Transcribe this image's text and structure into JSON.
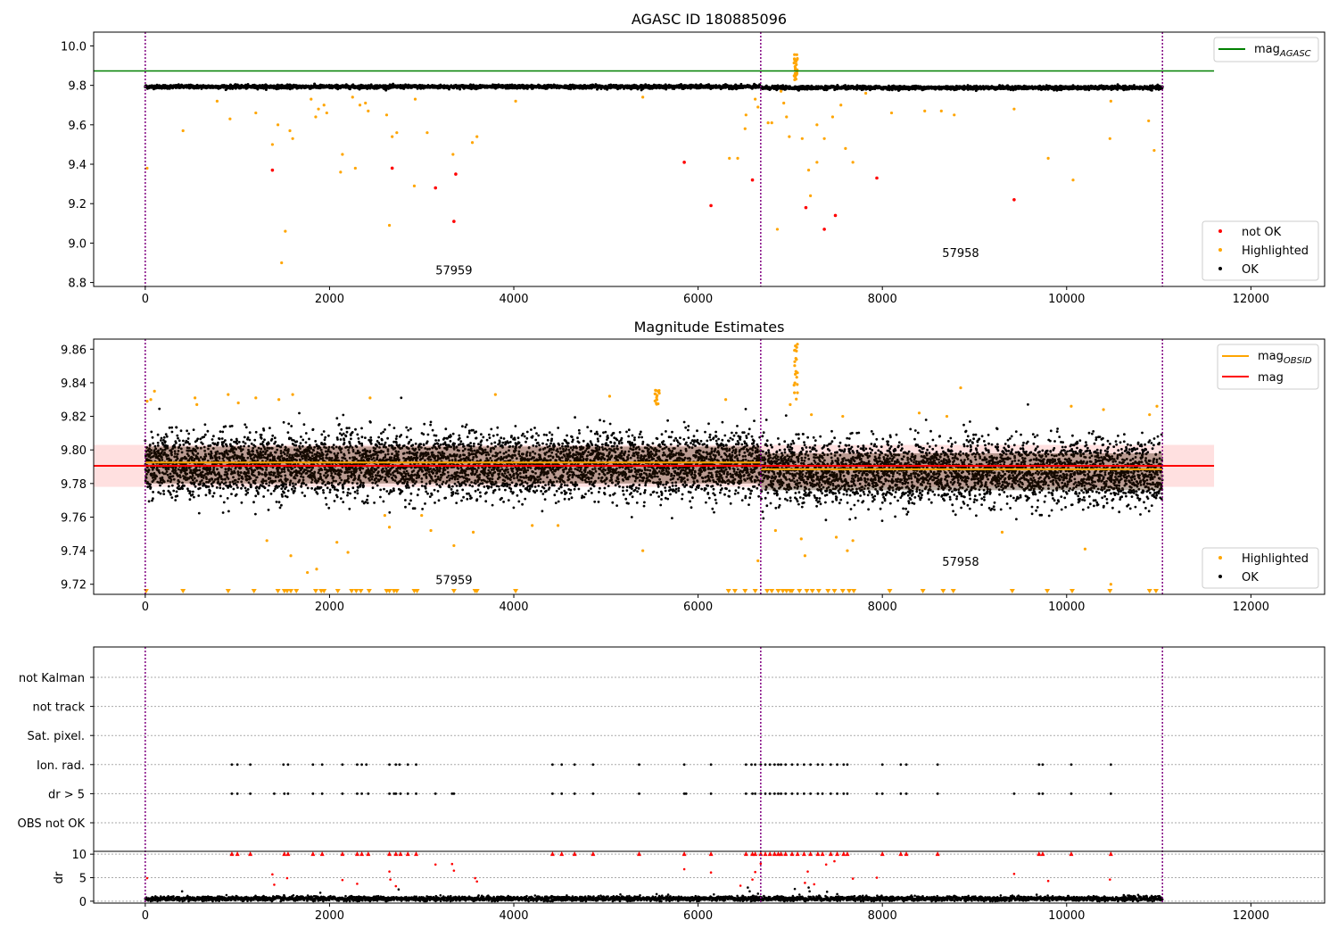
{
  "chart_data": [
    {
      "type": "scatter",
      "title": "AGASC ID 180885096",
      "xlim": [
        -560,
        12800
      ],
      "ylim": [
        8.78,
        10.07
      ],
      "xticks": [
        0,
        2000,
        4000,
        6000,
        8000,
        10000,
        12000
      ],
      "yticks": [
        8.8,
        9.0,
        9.2,
        9.4,
        9.6,
        9.8,
        10.0
      ],
      "ytick_labels": [
        "8.8",
        "9.0",
        "9.2",
        "9.4",
        "9.6",
        "9.8",
        "10.0"
      ],
      "obs_boundaries": [
        0,
        6680,
        11040
      ],
      "obs_labels": [
        {
          "text": "57959",
          "x": 3350,
          "y": 8.84
        },
        {
          "text": "57958",
          "x": 8850,
          "y": 8.93
        }
      ],
      "mag_agasc": {
        "value": 9.873,
        "x": [
          -560,
          11600
        ]
      },
      "series_model": {
        "x_range": [
          0,
          11040
        ],
        "segments": [
          {
            "x": [
              0,
              6680
            ],
            "center": 9.793,
            "spread": 0.011
          },
          {
            "x": [
              6680,
              11040
            ],
            "center": 9.788,
            "spread": 0.011
          }
        ]
      },
      "highlighted": [
        [
          20,
          9.38
        ],
        [
          410,
          9.57
        ],
        [
          780,
          9.72
        ],
        [
          920,
          9.63
        ],
        [
          1200,
          9.66
        ],
        [
          1380,
          9.5
        ],
        [
          1440,
          9.6
        ],
        [
          1480,
          8.9
        ],
        [
          1520,
          9.06
        ],
        [
          1570,
          9.57
        ],
        [
          1600,
          9.53
        ],
        [
          1800,
          9.73
        ],
        [
          1850,
          9.64
        ],
        [
          1880,
          9.68
        ],
        [
          1940,
          9.7
        ],
        [
          1970,
          9.66
        ],
        [
          2120,
          9.36
        ],
        [
          2140,
          9.45
        ],
        [
          2250,
          9.74
        ],
        [
          2280,
          9.38
        ],
        [
          2330,
          9.7
        ],
        [
          2390,
          9.71
        ],
        [
          2420,
          9.67
        ],
        [
          2620,
          9.65
        ],
        [
          2650,
          9.09
        ],
        [
          2680,
          9.54
        ],
        [
          2730,
          9.56
        ],
        [
          2920,
          9.29
        ],
        [
          2930,
          9.73
        ],
        [
          3060,
          9.56
        ],
        [
          3340,
          9.45
        ],
        [
          3550,
          9.51
        ],
        [
          3600,
          9.54
        ],
        [
          4020,
          9.72
        ],
        [
          5400,
          9.74
        ],
        [
          6340,
          9.43
        ],
        [
          6430,
          9.43
        ],
        [
          6510,
          9.58
        ],
        [
          6520,
          9.65
        ],
        [
          6620,
          9.73
        ],
        [
          6650,
          9.69
        ],
        [
          6760,
          9.61
        ],
        [
          6800,
          9.61
        ],
        [
          6860,
          9.07
        ],
        [
          6900,
          9.77
        ],
        [
          6930,
          9.71
        ],
        [
          6960,
          9.64
        ],
        [
          6990,
          9.54
        ],
        [
          7130,
          9.53
        ],
        [
          7200,
          9.37
        ],
        [
          7220,
          9.24
        ],
        [
          7290,
          9.6
        ],
        [
          7290,
          9.41
        ],
        [
          7370,
          9.53
        ],
        [
          7460,
          9.64
        ],
        [
          7550,
          9.7
        ],
        [
          7600,
          9.48
        ],
        [
          7680,
          9.41
        ],
        [
          7820,
          9.76
        ],
        [
          8100,
          9.66
        ],
        [
          8460,
          9.67
        ],
        [
          8640,
          9.67
        ],
        [
          8780,
          9.65
        ],
        [
          9430,
          9.68
        ],
        [
          9800,
          9.43
        ],
        [
          10070,
          9.32
        ],
        [
          10470,
          9.53
        ],
        [
          10480,
          9.72
        ],
        [
          10890,
          9.62
        ],
        [
          10950,
          9.47
        ]
      ],
      "highlighted_spike": {
        "x": 7060,
        "y_range": [
          9.82,
          9.96
        ]
      },
      "not_ok": [
        [
          1380,
          9.37
        ],
        [
          2680,
          9.38
        ],
        [
          3150,
          9.28
        ],
        [
          3350,
          9.11
        ],
        [
          3370,
          9.35
        ],
        [
          5850,
          9.41
        ],
        [
          6140,
          9.19
        ],
        [
          6590,
          9.32
        ],
        [
          7170,
          9.18
        ],
        [
          7370,
          9.07
        ],
        [
          7490,
          9.14
        ],
        [
          7940,
          9.33
        ],
        [
          9430,
          9.22
        ]
      ],
      "legend_lines": [
        {
          "label": "mag",
          "sub": "AGASC",
          "color": "#008000"
        }
      ],
      "legend_points": [
        {
          "label": "not OK",
          "color": "#ff0000"
        },
        {
          "label": "Highlighted",
          "color": "#ffa500"
        },
        {
          "label": "OK",
          "color": "#000000"
        }
      ]
    },
    {
      "type": "scatter",
      "title": "Magnitude Estimates",
      "xlim": [
        -560,
        12800
      ],
      "ylim": [
        9.714,
        9.866
      ],
      "xticks": [
        0,
        2000,
        4000,
        6000,
        8000,
        10000,
        12000
      ],
      "yticks": [
        9.72,
        9.74,
        9.76,
        9.78,
        9.8,
        9.82,
        9.84,
        9.86
      ],
      "ytick_labels": [
        "9.72",
        "9.74",
        "9.76",
        "9.78",
        "9.80",
        "9.82",
        "9.84",
        "9.86"
      ],
      "obs_boundaries": [
        0,
        6680,
        11040
      ],
      "obs_labels": [
        {
          "text": "57959",
          "x": 3350,
          "y": 9.72
        },
        {
          "text": "57958",
          "x": 8850,
          "y": 9.731
        }
      ],
      "mag": {
        "value": 9.7905,
        "band": [
          9.778,
          9.803
        ],
        "x": [
          -560,
          11600
        ]
      },
      "mag_obsid": [
        {
          "x": [
            0,
            6680
          ],
          "value": 9.7925
        },
        {
          "x": [
            6680,
            11040
          ],
          "value": 9.7885
        }
      ],
      "series_model": {
        "segments": [
          {
            "x": [
              0,
              6680
            ],
            "center": 9.791,
            "spread": 0.011
          },
          {
            "x": [
              6680,
              11040
            ],
            "center": 9.787,
            "spread": 0.011
          }
        ]
      },
      "highlighted": [
        [
          20,
          9.829
        ],
        [
          60,
          9.83
        ],
        [
          100,
          9.835
        ],
        [
          540,
          9.831
        ],
        [
          560,
          9.827
        ],
        [
          900,
          9.833
        ],
        [
          1010,
          9.828
        ],
        [
          1200,
          9.831
        ],
        [
          1320,
          9.746
        ],
        [
          1450,
          9.83
        ],
        [
          1580,
          9.737
        ],
        [
          1600,
          9.833
        ],
        [
          1760,
          9.727
        ],
        [
          1860,
          9.729
        ],
        [
          2080,
          9.745
        ],
        [
          2200,
          9.739
        ],
        [
          2440,
          9.831
        ],
        [
          2600,
          9.761
        ],
        [
          2650,
          9.754
        ],
        [
          3000,
          9.761
        ],
        [
          3100,
          9.752
        ],
        [
          3350,
          9.743
        ],
        [
          3560,
          9.751
        ],
        [
          3800,
          9.833
        ],
        [
          4200,
          9.755
        ],
        [
          4480,
          9.755
        ],
        [
          5040,
          9.832
        ],
        [
          5400,
          9.74
        ],
        [
          5550,
          9.83
        ],
        [
          6300,
          9.83
        ],
        [
          6650,
          9.734
        ],
        [
          6840,
          9.752
        ],
        [
          7000,
          9.827
        ],
        [
          7120,
          9.747
        ],
        [
          7160,
          9.737
        ],
        [
          7230,
          9.821
        ],
        [
          7500,
          9.748
        ],
        [
          7570,
          9.82
        ],
        [
          7620,
          9.74
        ],
        [
          7680,
          9.746
        ],
        [
          8400,
          9.822
        ],
        [
          8700,
          9.82
        ],
        [
          8850,
          9.837
        ],
        [
          9300,
          9.751
        ],
        [
          10050,
          9.826
        ],
        [
          10200,
          9.741
        ],
        [
          10400,
          9.824
        ],
        [
          10480,
          9.72
        ],
        [
          10900,
          9.821
        ],
        [
          10980,
          9.826
        ]
      ],
      "highlighted_spike": {
        "x": 7060,
        "y_range": [
          9.83,
          9.863
        ]
      },
      "highlighted_cluster": {
        "x": [
          5530,
          5580
        ],
        "y_range": [
          9.826,
          9.836
        ]
      },
      "below_axis_markers_x": [
        10,
        410,
        900,
        1180,
        1440,
        1510,
        1540,
        1580,
        1640,
        1850,
        1910,
        1940,
        2090,
        2240,
        2290,
        2340,
        2430,
        2620,
        2650,
        2700,
        2730,
        2920,
        2950,
        3350,
        3580,
        3600,
        4020,
        6330,
        6400,
        6510,
        6620,
        6750,
        6800,
        6870,
        6920,
        6960,
        7000,
        7020,
        7100,
        7180,
        7240,
        7310,
        7410,
        7480,
        7570,
        7640,
        7690,
        8080,
        8440,
        8660,
        8770,
        9410,
        9790,
        10060,
        10470,
        10900,
        10970
      ],
      "legend_lines": [
        {
          "label": "mag",
          "sub": "OBSID",
          "color": "#ffa500"
        },
        {
          "label": "mag",
          "sub": "",
          "color": "#ff0000"
        }
      ],
      "legend_points": [
        {
          "label": "Highlighted",
          "color": "#ffa500"
        },
        {
          "label": "OK",
          "color": "#000000"
        }
      ]
    },
    {
      "type": "scatter",
      "title": "",
      "xlim": [
        -560,
        12800
      ],
      "xticks": [
        0,
        2000,
        4000,
        6000,
        8000,
        10000,
        12000
      ],
      "obs_boundaries": [
        0,
        6680,
        11040
      ],
      "flag_rows": [
        "not Kalman",
        "not track",
        "Sat. pixel.",
        "Ion. rad.",
        "dr > 5",
        "OBS not OK"
      ],
      "flags": {
        "Ion. rad.": [
          940,
          1000,
          1140,
          1500,
          1550,
          1820,
          1920,
          2140,
          2300,
          2350,
          2400,
          2650,
          2720,
          2760,
          2850,
          2940,
          4420,
          4520,
          4660,
          4860,
          5360,
          5850,
          6140,
          6520,
          6580,
          6620,
          6680,
          6730,
          6780,
          6830,
          6870,
          6900,
          6950,
          7020,
          7080,
          7150,
          7220,
          7300,
          7350,
          7440,
          7510,
          7580,
          7620,
          8000,
          8200,
          8260,
          8600,
          9700,
          9740,
          10050,
          10480
        ],
        "dr > 5": [
          940,
          1000,
          1140,
          1400,
          1510,
          1550,
          1820,
          1920,
          2140,
          2300,
          2350,
          2420,
          2650,
          2700,
          2720,
          2770,
          2850,
          2940,
          3150,
          3330,
          3350,
          4420,
          4520,
          4660,
          4860,
          5360,
          5850,
          5870,
          6140,
          6520,
          6590,
          6620,
          6680,
          6730,
          6780,
          6830,
          6870,
          6900,
          6950,
          7020,
          7080,
          7150,
          7220,
          7300,
          7350,
          7440,
          7510,
          7580,
          7620,
          7940,
          8000,
          8200,
          8260,
          8600,
          9430,
          9700,
          9740,
          10050,
          10480
        ]
      },
      "dr": {
        "ylim": [
          -0.4,
          10.6
        ],
        "yticks": [
          0,
          5,
          10
        ],
        "ylabel": "dr",
        "baseline": {
          "x": [
            0,
            11040
          ],
          "level": 0.55,
          "spread": 0.25
        },
        "red_clipped_x": [
          940,
          1000,
          1140,
          1510,
          1550,
          1820,
          1920,
          2140,
          2300,
          2350,
          2420,
          2650,
          2720,
          2770,
          2850,
          2940,
          4420,
          4520,
          4660,
          4860,
          5360,
          5850,
          6140,
          6520,
          6590,
          6620,
          6680,
          6730,
          6780,
          6830,
          6870,
          6900,
          6950,
          7020,
          7080,
          7150,
          7220,
          7300,
          7350,
          7440,
          7510,
          7580,
          7620,
          8000,
          8200,
          8260,
          8600,
          9700,
          9740,
          10050,
          10480
        ],
        "red_points": [
          [
            20,
            4.9
          ],
          [
            1380,
            5.7
          ],
          [
            1400,
            3.5
          ],
          [
            1540,
            4.9
          ],
          [
            2140,
            4.5
          ],
          [
            2300,
            3.7
          ],
          [
            2650,
            6.3
          ],
          [
            2660,
            4.6
          ],
          [
            2720,
            3.2
          ],
          [
            3150,
            7.8
          ],
          [
            3330,
            7.9
          ],
          [
            3350,
            6.5
          ],
          [
            3580,
            4.9
          ],
          [
            3600,
            4.2
          ],
          [
            5850,
            6.8
          ],
          [
            6140,
            6.1
          ],
          [
            6460,
            3.3
          ],
          [
            6590,
            4.6
          ],
          [
            6620,
            6.2
          ],
          [
            6680,
            8.0
          ],
          [
            7160,
            3.9
          ],
          [
            7190,
            6.3
          ],
          [
            7260,
            3.6
          ],
          [
            7390,
            7.8
          ],
          [
            7480,
            8.5
          ],
          [
            7680,
            4.8
          ],
          [
            7940,
            5.0
          ],
          [
            9430,
            5.8
          ],
          [
            9800,
            4.3
          ],
          [
            10470,
            4.6
          ]
        ],
        "black_points": [
          [
            400,
            2.1
          ],
          [
            1900,
            1.8
          ],
          [
            2750,
            2.5
          ],
          [
            5550,
            1.5
          ],
          [
            6540,
            2.9
          ],
          [
            6560,
            2.1
          ],
          [
            6650,
            1.6
          ],
          [
            7050,
            2.6
          ],
          [
            7100,
            1.4
          ],
          [
            7200,
            2.9
          ],
          [
            7210,
            2.1
          ],
          [
            7400,
            2.0
          ],
          [
            7510,
            1.5
          ]
        ]
      }
    }
  ]
}
